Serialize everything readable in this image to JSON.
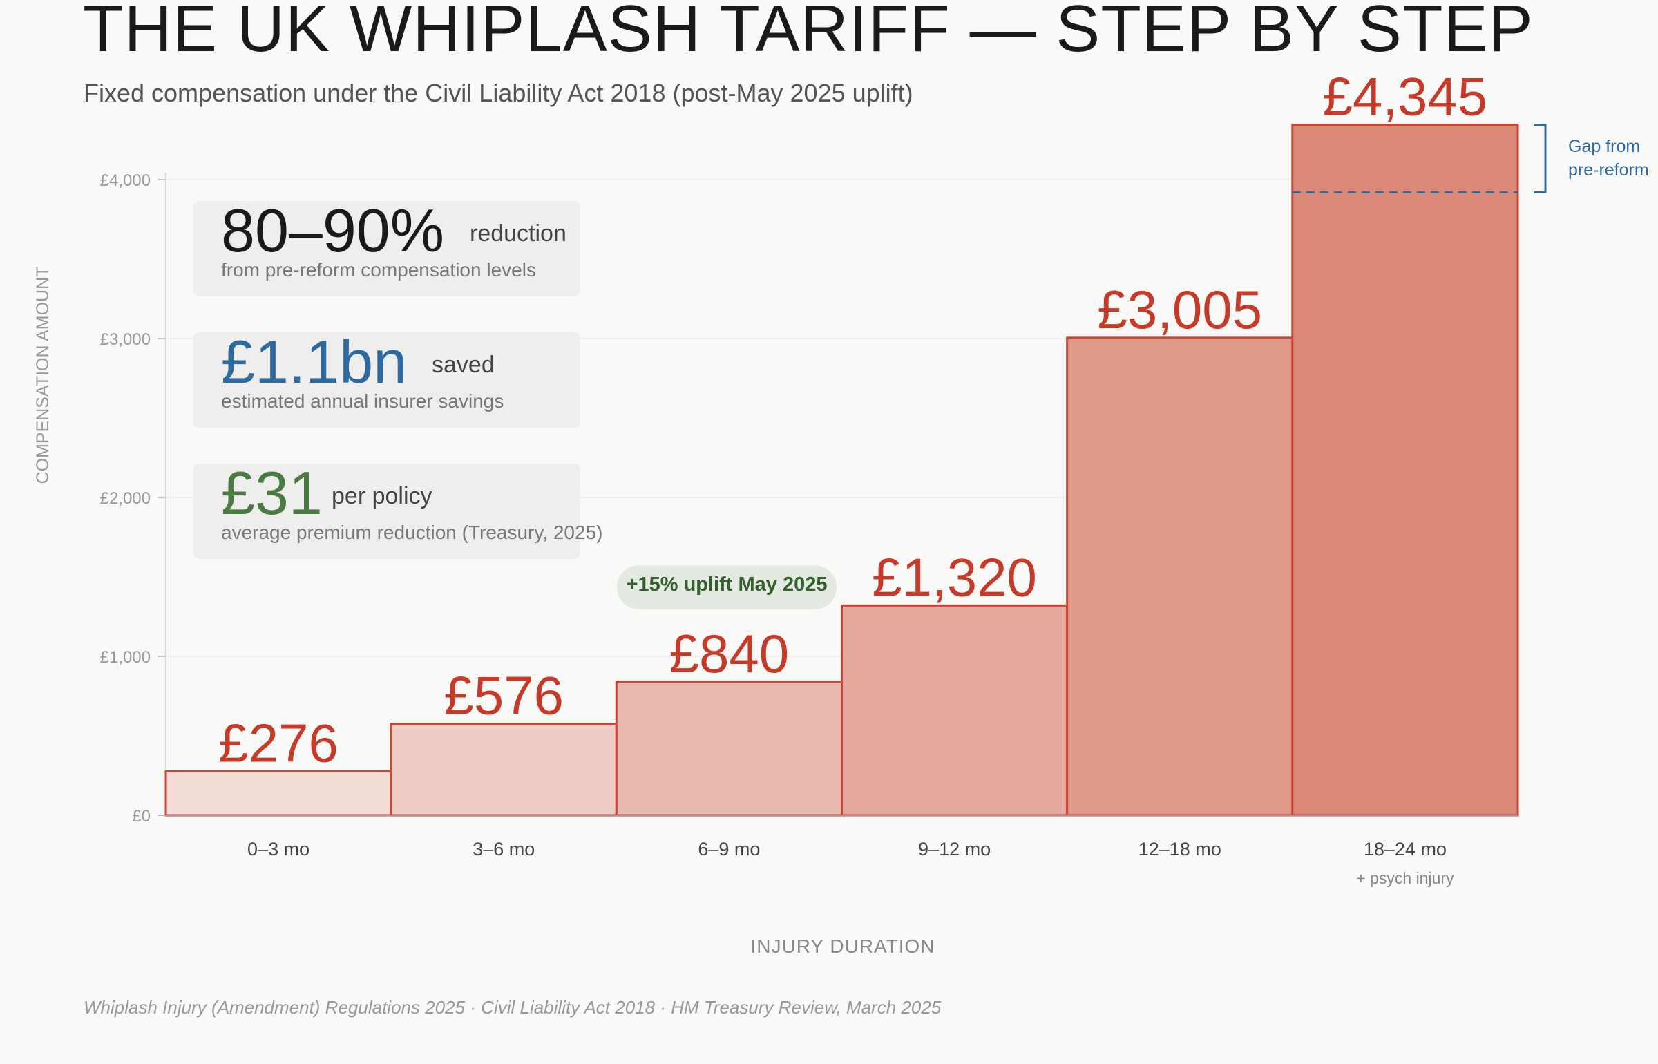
{
  "header": {
    "title": "THE UK WHIPLASH TARIFF — STEP BY STEP",
    "subtitle": "Fixed compensation under the Civil Liability Act 2018 (post-May 2025 uplift)"
  },
  "stats": [
    {
      "big": "80–90%",
      "unit": "reduction",
      "desc": "from pre-reform compensation levels",
      "color": "#1a1a1a"
    },
    {
      "big": "£1.1bn",
      "unit": "saved",
      "desc": "estimated annual insurer savings",
      "color": "#2e6aa0"
    },
    {
      "big": "£31",
      "unit": "per policy",
      "desc": "average premium reduction (Treasury, 2025)",
      "color": "#4c7a44"
    }
  ],
  "annotations": {
    "uplift": "+15% uplift May 2025",
    "gap_line1": "Gap from",
    "gap_line2": "pre-reform",
    "gap_reference_value": 3920
  },
  "footer": "Whiplash Injury (Amendment) Regulations 2025 · Civil Liability Act 2018 · HM Treasury Review, March 2025",
  "chart_data": {
    "type": "bar",
    "categories": [
      "0–3 mo",
      "3–6 mo",
      "6–9 mo",
      "9–12 mo",
      "12–18 mo",
      "18–24 mo"
    ],
    "category_notes": [
      "",
      "",
      "",
      "",
      "",
      "+ psych injury"
    ],
    "values": [
      276,
      576,
      840,
      1320,
      3005,
      4345
    ],
    "value_labels": [
      "£276",
      "£576",
      "£840",
      "£1,320",
      "£3,005",
      "£4,345"
    ],
    "xlabel": "INJURY DURATION",
    "ylabel": "COMPENSATION AMOUNT",
    "ylim": [
      0,
      4000
    ],
    "yticks": [
      0,
      1000,
      2000,
      3000,
      4000
    ],
    "ytick_labels": [
      "£0",
      "£1,000",
      "£2,000",
      "£3,000",
      "£4,000"
    ],
    "grid": true,
    "colors": {
      "bar_light": "#f3dcd7",
      "bar_dark": "#dc8877",
      "stroke": "#cc4433",
      "label": "#c63a2a",
      "gap": "#2e6aa0"
    }
  }
}
